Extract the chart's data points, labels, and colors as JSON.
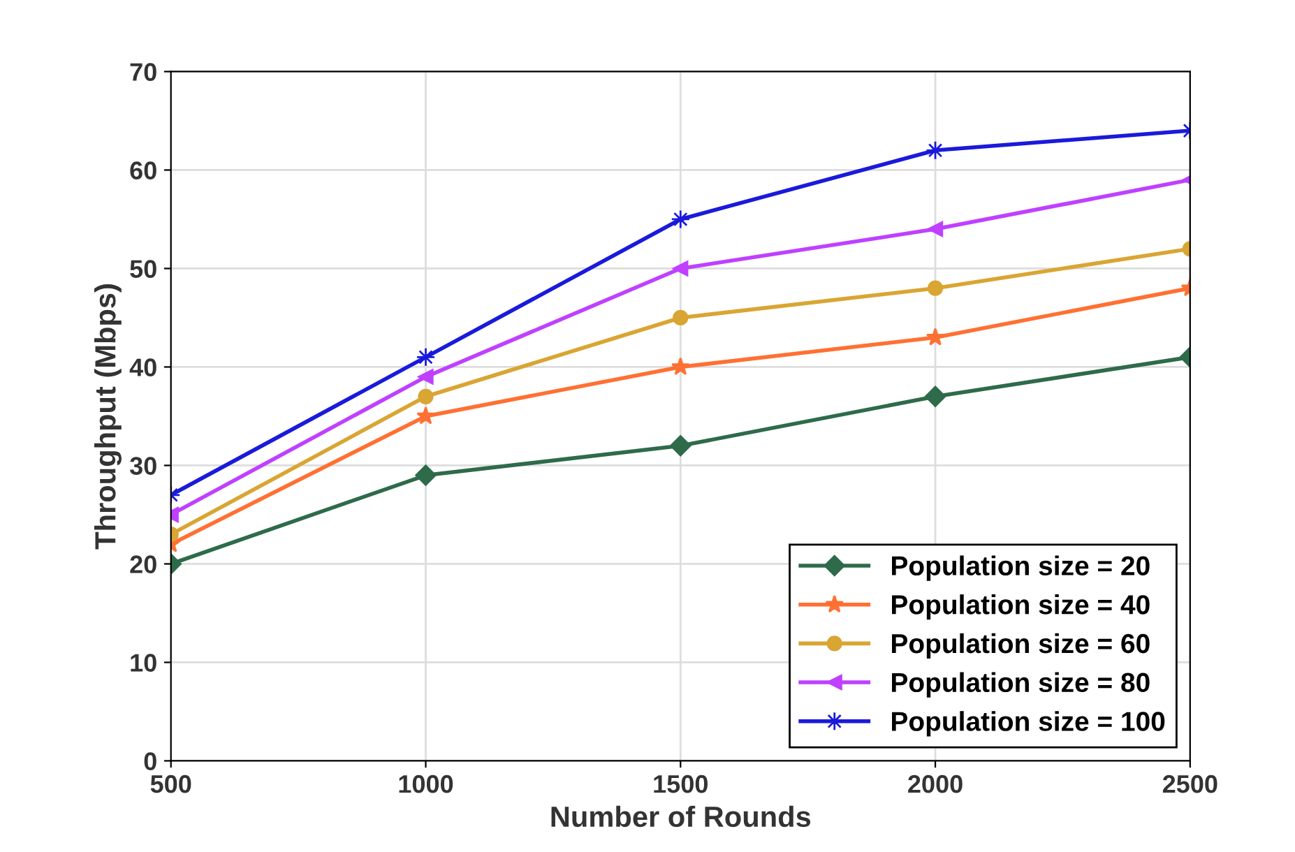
{
  "chart_data": {
    "type": "line",
    "xlabel": "Number of Rounds",
    "ylabel": "Throughput (Mbps)",
    "x": [
      500,
      1000,
      1500,
      2000,
      2500
    ],
    "series": [
      {
        "name": "Population size = 20",
        "color": "#2e6b4a",
        "marker": "diamond",
        "values": [
          20,
          29,
          32,
          37,
          41
        ]
      },
      {
        "name": "Population size = 40",
        "color": "#ff7033",
        "marker": "star",
        "values": [
          22,
          35,
          40,
          43,
          48
        ]
      },
      {
        "name": "Population size = 60",
        "color": "#d9a533",
        "marker": "circle",
        "values": [
          23,
          37,
          45,
          48,
          52
        ]
      },
      {
        "name": "Population size = 80",
        "color": "#bf40ff",
        "marker": "triangle",
        "values": [
          25,
          39,
          50,
          54,
          59
        ]
      },
      {
        "name": "Population size = 100",
        "color": "#1a1adb",
        "marker": "cross",
        "values": [
          27,
          41,
          55,
          62,
          64
        ]
      }
    ],
    "xlim": [
      500,
      2500
    ],
    "xticks": [
      500,
      1000,
      1500,
      2000,
      2500
    ],
    "ylim": [
      0,
      70
    ],
    "yticks": [
      0,
      10,
      20,
      30,
      40,
      50,
      60,
      70
    ],
    "grid": true,
    "legend": "bottom right",
    "line_style": "solid"
  }
}
